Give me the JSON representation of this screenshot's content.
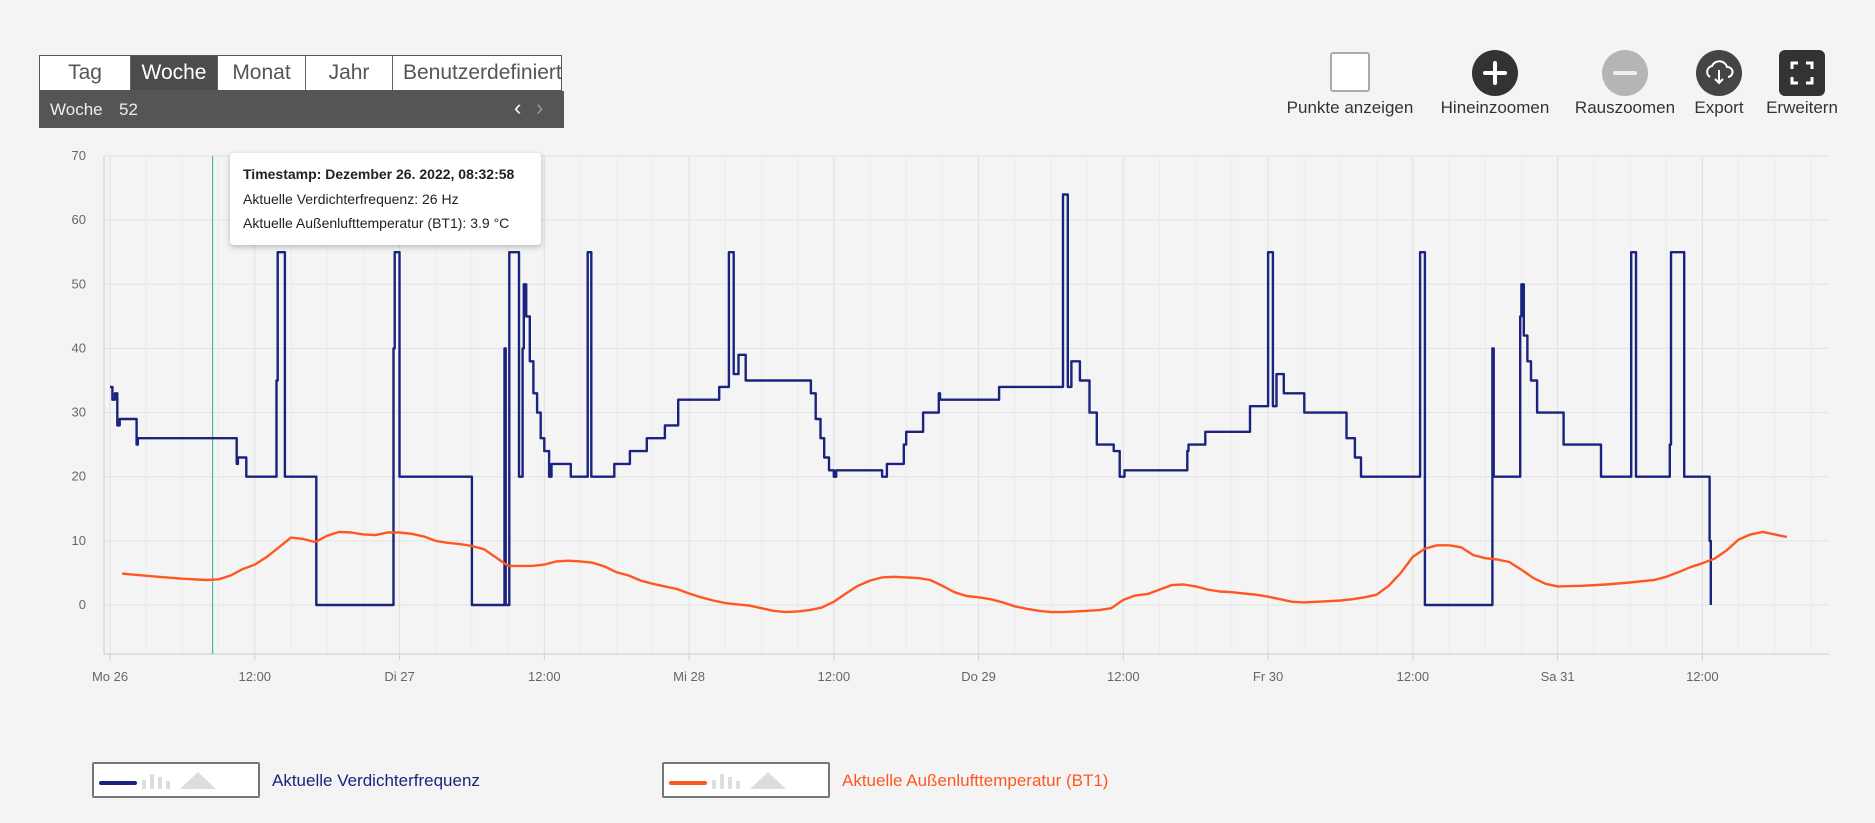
{
  "tabs": [
    {
      "label": "Tag",
      "active": false
    },
    {
      "label": "Woche",
      "active": true
    },
    {
      "label": "Monat",
      "active": false
    },
    {
      "label": "Jahr",
      "active": false
    },
    {
      "label": "Benutzerdefiniert",
      "active": false
    }
  ],
  "week": {
    "label": "Woche",
    "number": "52"
  },
  "toolbar": {
    "points": "Punkte anzeigen",
    "zoom_in": "Hineinzoomen",
    "zoom_out": "Rauszoomen",
    "export": "Export",
    "expand": "Erweitern"
  },
  "tooltip": {
    "timestamp": "Timestamp: Dezember 26. 2022, 08:32:58",
    "line1": "Aktuelle Verdichterfrequenz: 26 Hz",
    "line2": "Aktuelle Außenlufttemperatur (BT1): 3.9 °C"
  },
  "legend": [
    {
      "name": "Aktuelle Verdichterfrequenz",
      "color": "#1a237e"
    },
    {
      "name": "Aktuelle Außenlufttemperatur (BT1)",
      "color": "#ff5722"
    }
  ],
  "chart_data": {
    "type": "line",
    "ylim": [
      0,
      70
    ],
    "yticks": [
      0,
      10,
      20,
      30,
      40,
      50,
      60,
      70
    ],
    "xlim": [
      -0.5,
      142.5
    ],
    "xticks": [
      {
        "h": 0,
        "label": "Mo 26"
      },
      {
        "h": 12,
        "label": "12:00"
      },
      {
        "h": 24,
        "label": "Di 27"
      },
      {
        "h": 36,
        "label": "12:00"
      },
      {
        "h": 48,
        "label": "Mi 28"
      },
      {
        "h": 60,
        "label": "12:00"
      },
      {
        "h": 72,
        "label": "Do 29"
      },
      {
        "h": 84,
        "label": "12:00"
      },
      {
        "h": 96,
        "label": "Fr 30"
      },
      {
        "h": 108,
        "label": "12:00"
      },
      {
        "h": 120,
        "label": "Sa 31"
      },
      {
        "h": 132,
        "label": "12:00"
      }
    ],
    "crosshair_h": 8.5,
    "series": [
      {
        "name": "Aktuelle Verdichterfrequenz",
        "color": "#1a237e",
        "step": true,
        "points": [
          [
            0,
            34
          ],
          [
            0.2,
            32
          ],
          [
            0.4,
            33
          ],
          [
            0.6,
            28
          ],
          [
            0.8,
            29
          ],
          [
            2.1,
            29
          ],
          [
            2.2,
            25
          ],
          [
            2.3,
            26
          ],
          [
            10.4,
            26
          ],
          [
            10.5,
            22
          ],
          [
            10.6,
            23
          ],
          [
            11.2,
            23
          ],
          [
            11.3,
            20
          ],
          [
            13.7,
            20
          ],
          [
            13.8,
            35
          ],
          [
            13.9,
            55
          ],
          [
            14.4,
            55
          ],
          [
            14.5,
            20
          ],
          [
            17.0,
            20
          ],
          [
            17.1,
            0
          ],
          [
            23.4,
            0
          ],
          [
            23.5,
            40
          ],
          [
            23.6,
            55
          ],
          [
            23.9,
            55
          ],
          [
            24.0,
            20
          ],
          [
            29.9,
            20
          ],
          [
            30.0,
            0
          ],
          [
            32.6,
            0
          ],
          [
            32.7,
            40
          ],
          [
            32.8,
            0
          ],
          [
            33.0,
            0
          ],
          [
            33.1,
            55
          ],
          [
            33.8,
            55
          ],
          [
            33.9,
            20
          ],
          [
            34.1,
            20
          ],
          [
            34.2,
            40
          ],
          [
            34.3,
            50
          ],
          [
            34.5,
            45
          ],
          [
            34.8,
            38
          ],
          [
            35.1,
            33
          ],
          [
            35.4,
            30
          ],
          [
            35.7,
            26
          ],
          [
            36.0,
            24
          ],
          [
            36.4,
            20
          ],
          [
            36.6,
            22
          ],
          [
            38.1,
            22
          ],
          [
            38.2,
            20
          ],
          [
            39.5,
            20
          ],
          [
            39.6,
            55
          ],
          [
            39.8,
            55
          ],
          [
            39.9,
            20
          ],
          [
            41.7,
            20
          ],
          [
            41.8,
            22
          ],
          [
            43.0,
            22
          ],
          [
            43.1,
            24
          ],
          [
            44.4,
            24
          ],
          [
            44.5,
            26
          ],
          [
            45.9,
            26
          ],
          [
            46.0,
            28
          ],
          [
            47.0,
            28
          ],
          [
            47.1,
            32
          ],
          [
            50.4,
            32
          ],
          [
            50.5,
            34
          ],
          [
            51.2,
            34
          ],
          [
            51.3,
            55
          ],
          [
            51.6,
            55
          ],
          [
            51.7,
            36
          ],
          [
            52.0,
            36
          ],
          [
            52.1,
            39
          ],
          [
            52.6,
            39
          ],
          [
            52.7,
            35
          ],
          [
            58.0,
            35
          ],
          [
            58.1,
            33
          ],
          [
            58.5,
            29
          ],
          [
            58.9,
            26
          ],
          [
            59.2,
            23
          ],
          [
            59.6,
            21
          ],
          [
            60.0,
            20
          ],
          [
            60.2,
            21
          ],
          [
            63.9,
            21
          ],
          [
            64.0,
            20
          ],
          [
            64.3,
            20
          ],
          [
            64.4,
            22
          ],
          [
            65.7,
            22
          ],
          [
            65.8,
            25
          ],
          [
            66.0,
            27
          ],
          [
            67.3,
            27
          ],
          [
            67.4,
            30
          ],
          [
            68.6,
            30
          ],
          [
            68.7,
            33
          ],
          [
            68.8,
            32
          ],
          [
            73.6,
            32
          ],
          [
            73.7,
            34
          ],
          [
            78.9,
            34
          ],
          [
            79.0,
            64
          ],
          [
            79.3,
            64
          ],
          [
            79.4,
            34
          ],
          [
            79.6,
            34
          ],
          [
            79.7,
            38
          ],
          [
            80.3,
            38
          ],
          [
            80.4,
            35
          ],
          [
            81.1,
            35
          ],
          [
            81.2,
            30
          ],
          [
            81.7,
            30
          ],
          [
            81.8,
            25
          ],
          [
            83.1,
            25
          ],
          [
            83.2,
            24
          ],
          [
            83.6,
            24
          ],
          [
            83.7,
            20
          ],
          [
            84.0,
            20
          ],
          [
            84.1,
            21
          ],
          [
            89.2,
            21
          ],
          [
            89.3,
            24
          ],
          [
            89.4,
            25
          ],
          [
            90.7,
            25
          ],
          [
            90.8,
            27
          ],
          [
            94.4,
            27
          ],
          [
            94.5,
            31
          ],
          [
            95.9,
            31
          ],
          [
            96.0,
            55
          ],
          [
            96.3,
            55
          ],
          [
            96.4,
            31
          ],
          [
            96.6,
            31
          ],
          [
            96.7,
            36
          ],
          [
            97.2,
            36
          ],
          [
            97.3,
            33
          ],
          [
            98.9,
            33
          ],
          [
            99.0,
            30
          ],
          [
            102.4,
            30
          ],
          [
            102.5,
            26
          ],
          [
            103.1,
            26
          ],
          [
            103.2,
            23
          ],
          [
            103.6,
            23
          ],
          [
            103.7,
            20
          ],
          [
            108.5,
            20
          ],
          [
            108.6,
            55
          ],
          [
            108.9,
            55
          ],
          [
            109.0,
            0
          ],
          [
            114.5,
            0
          ],
          [
            114.6,
            40
          ],
          [
            114.7,
            20
          ],
          [
            116.8,
            20
          ],
          [
            116.9,
            45
          ],
          [
            117.0,
            50
          ],
          [
            117.2,
            42
          ],
          [
            117.5,
            38
          ],
          [
            117.8,
            35
          ],
          [
            118.3,
            30
          ],
          [
            120.4,
            30
          ],
          [
            120.5,
            25
          ],
          [
            123.5,
            25
          ],
          [
            123.6,
            20
          ],
          [
            126.0,
            20
          ],
          [
            126.1,
            55
          ],
          [
            126.4,
            55
          ],
          [
            126.5,
            20
          ],
          [
            129.2,
            20
          ],
          [
            129.3,
            25
          ],
          [
            129.4,
            55
          ],
          [
            130.4,
            55
          ],
          [
            130.5,
            20
          ],
          [
            132.5,
            20
          ],
          [
            132.6,
            10
          ],
          [
            132.7,
            0
          ]
        ]
      },
      {
        "name": "Aktuelle Außenlufttemperatur (BT1)",
        "color": "#ff5722",
        "step": false,
        "points": [
          [
            1,
            4.9
          ],
          [
            4,
            4.4
          ],
          [
            6,
            4.1
          ],
          [
            8,
            3.9
          ],
          [
            9,
            4.0
          ],
          [
            10,
            4.6
          ],
          [
            11,
            5.6
          ],
          [
            12,
            6.3
          ],
          [
            13,
            7.5
          ],
          [
            14,
            9.0
          ],
          [
            15,
            10.5
          ],
          [
            16,
            10.3
          ],
          [
            17,
            9.8
          ],
          [
            18,
            10.8
          ],
          [
            19,
            11.4
          ],
          [
            20,
            11.3
          ],
          [
            21,
            11.0
          ],
          [
            22,
            10.9
          ],
          [
            23,
            11.3
          ],
          [
            24,
            11.3
          ],
          [
            25,
            11.1
          ],
          [
            26,
            10.7
          ],
          [
            27,
            10.0
          ],
          [
            28,
            9.7
          ],
          [
            29,
            9.5
          ],
          [
            30,
            9.2
          ],
          [
            31,
            8.7
          ],
          [
            32,
            7.4
          ],
          [
            33,
            6.1
          ],
          [
            35,
            6.1
          ],
          [
            36,
            6.3
          ],
          [
            37,
            6.8
          ],
          [
            38,
            6.9
          ],
          [
            39,
            6.8
          ],
          [
            40,
            6.6
          ],
          [
            41,
            6.0
          ],
          [
            42,
            5.1
          ],
          [
            43,
            4.6
          ],
          [
            44,
            3.8
          ],
          [
            45,
            3.3
          ],
          [
            46,
            2.9
          ],
          [
            47,
            2.5
          ],
          [
            48,
            1.8
          ],
          [
            49,
            1.2
          ],
          [
            50,
            0.7
          ],
          [
            51,
            0.3
          ],
          [
            52,
            0.1
          ],
          [
            53,
            -0.1
          ],
          [
            54,
            -0.5
          ],
          [
            55,
            -0.9
          ],
          [
            56,
            -1.1
          ],
          [
            57,
            -1.0
          ],
          [
            58,
            -0.8
          ],
          [
            59,
            -0.4
          ],
          [
            60,
            0.5
          ],
          [
            61,
            1.8
          ],
          [
            62,
            3.0
          ],
          [
            63,
            3.8
          ],
          [
            64,
            4.3
          ],
          [
            65,
            4.4
          ],
          [
            66,
            4.3
          ],
          [
            67,
            4.2
          ],
          [
            68,
            3.9
          ],
          [
            69,
            3.0
          ],
          [
            70,
            2.0
          ],
          [
            71,
            1.4
          ],
          [
            72,
            1.2
          ],
          [
            73,
            0.9
          ],
          [
            74,
            0.4
          ],
          [
            75,
            -0.2
          ],
          [
            76,
            -0.6
          ],
          [
            77,
            -0.9
          ],
          [
            78,
            -1.1
          ],
          [
            79,
            -1.1
          ],
          [
            80,
            -1.0
          ],
          [
            81,
            -0.9
          ],
          [
            82,
            -0.8
          ],
          [
            83,
            -0.5
          ],
          [
            84,
            0.8
          ],
          [
            85,
            1.5
          ],
          [
            86,
            1.7
          ],
          [
            87,
            2.4
          ],
          [
            88,
            3.1
          ],
          [
            89,
            3.2
          ],
          [
            90,
            2.9
          ],
          [
            91,
            2.4
          ],
          [
            92,
            2.1
          ],
          [
            93,
            2.0
          ],
          [
            94,
            1.8
          ],
          [
            95,
            1.6
          ],
          [
            96,
            1.3
          ],
          [
            97,
            0.9
          ],
          [
            98,
            0.5
          ],
          [
            99,
            0.4
          ],
          [
            100,
            0.5
          ],
          [
            101,
            0.6
          ],
          [
            102,
            0.7
          ],
          [
            103,
            0.9
          ],
          [
            104,
            1.2
          ],
          [
            105,
            1.6
          ],
          [
            106,
            3.0
          ],
          [
            107,
            5.0
          ],
          [
            108,
            7.5
          ],
          [
            109,
            8.8
          ],
          [
            110,
            9.3
          ],
          [
            111,
            9.3
          ],
          [
            112,
            9.0
          ],
          [
            113,
            7.8
          ],
          [
            114,
            7.3
          ],
          [
            115,
            7.1
          ],
          [
            116,
            6.7
          ],
          [
            117,
            5.5
          ],
          [
            118,
            4.2
          ],
          [
            119,
            3.3
          ],
          [
            120,
            2.9
          ],
          [
            122,
            3.0
          ],
          [
            124,
            3.2
          ],
          [
            126,
            3.5
          ],
          [
            128,
            3.9
          ],
          [
            129,
            4.4
          ],
          [
            130,
            5.1
          ],
          [
            131,
            5.9
          ],
          [
            132,
            6.5
          ],
          [
            133,
            7.2
          ],
          [
            134,
            8.5
          ],
          [
            135,
            10.2
          ],
          [
            136,
            11.0
          ],
          [
            137,
            11.4
          ],
          [
            138,
            11.0
          ],
          [
            139,
            10.6
          ]
        ]
      }
    ]
  }
}
